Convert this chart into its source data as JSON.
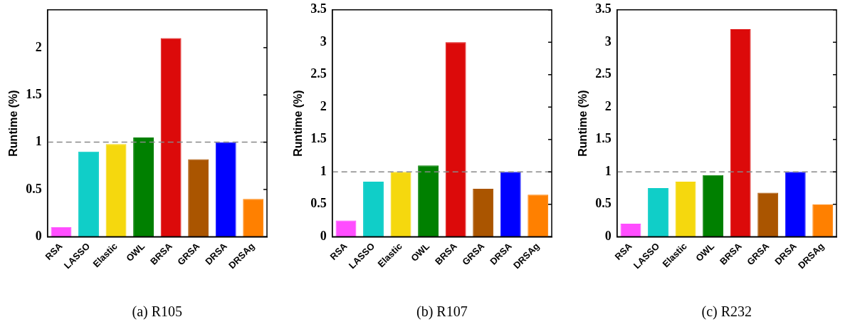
{
  "chart_data": [
    {
      "type": "bar",
      "xlabel": "(a) R105",
      "ylabel": "Runtime (%)",
      "categories": [
        "RSA",
        "LASSO",
        "Elastic",
        "OWL",
        "BRSA",
        "GRSA",
        "DRSA",
        "DRSAg"
      ],
      "values": [
        0.1,
        0.9,
        0.98,
        1.05,
        2.1,
        0.82,
        1.0,
        0.4
      ],
      "colors": [
        "#ff4dff",
        "#10cec8",
        "#f5d80e",
        "#008000",
        "#dc0a0a",
        "#aa5500",
        "#0000ff",
        "#ff8000"
      ],
      "ylim": [
        0,
        2.4
      ],
      "yticks": [
        0,
        0.5,
        1,
        1.5,
        2
      ],
      "ref_lines": [
        {
          "axis": "y",
          "value": 1,
          "color": "#888888",
          "line_style": "dashed"
        }
      ],
      "grid": false,
      "legend": false
    },
    {
      "type": "bar",
      "xlabel": "(b) R107",
      "ylabel": "Runtime (%)",
      "categories": [
        "RSA",
        "LASSO",
        "Elastic",
        "OWL",
        "BRSA",
        "GRSA",
        "DRSA",
        "DRSAg"
      ],
      "values": [
        0.25,
        0.85,
        1.0,
        1.1,
        3.0,
        0.74,
        1.0,
        0.65
      ],
      "colors": [
        "#ff4dff",
        "#10cec8",
        "#f5d80e",
        "#008000",
        "#dc0a0a",
        "#aa5500",
        "#0000ff",
        "#ff8000"
      ],
      "ylim": [
        0,
        3.5
      ],
      "yticks": [
        0,
        0.5,
        1,
        1.5,
        2,
        2.5,
        3,
        3.5
      ],
      "ref_lines": [
        {
          "axis": "y",
          "value": 1,
          "color": "#888888",
          "line_style": "dashed"
        }
      ],
      "grid": false,
      "legend": false
    },
    {
      "type": "bar",
      "xlabel": "(c) R232",
      "ylabel": "Runtime (%)",
      "categories": [
        "RSA",
        "LASSO",
        "Elastic",
        "OWL",
        "BRSA",
        "GRSA",
        "DRSA",
        "DRSAg"
      ],
      "values": [
        0.2,
        0.75,
        0.85,
        0.95,
        3.2,
        0.68,
        1.0,
        0.5
      ],
      "colors": [
        "#ff4dff",
        "#10cec8",
        "#f5d80e",
        "#008000",
        "#dc0a0a",
        "#aa5500",
        "#0000ff",
        "#ff8000"
      ],
      "ylim": [
        0,
        3.5
      ],
      "yticks": [
        0,
        0.5,
        1,
        1.5,
        2,
        2.5,
        3,
        3.5
      ],
      "ref_lines": [
        {
          "axis": "y",
          "value": 1,
          "color": "#888888",
          "line_style": "dashed"
        }
      ],
      "grid": false,
      "legend": false
    }
  ]
}
